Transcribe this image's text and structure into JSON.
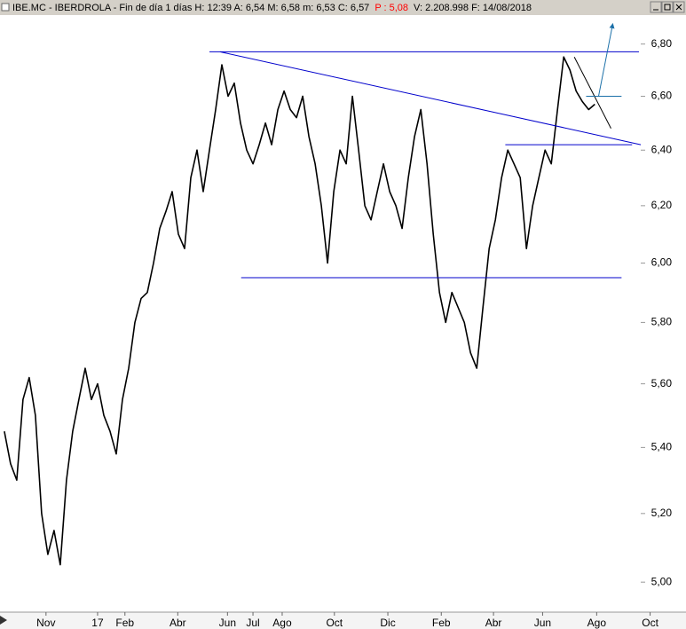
{
  "chart_data": {
    "type": "line",
    "title": "IBE.MC - IBERDROLA - Fin de día 1 días H: 12:39 A: 6,54 M: 6,58 m: 6,53 C: 6,57",
    "title_highlight": "P : 5,08",
    "title_rest": "V: 2.208.998 F: 14/08/2018",
    "highlight_color": "#ff0000",
    "color": "#000000",
    "values": [
      5.45,
      5.35,
      5.3,
      5.55,
      5.62,
      5.5,
      5.2,
      5.08,
      5.15,
      5.05,
      5.3,
      5.45,
      5.55,
      5.65,
      5.55,
      5.6,
      5.5,
      5.45,
      5.38,
      5.55,
      5.65,
      5.8,
      5.88,
      5.9,
      6.0,
      6.12,
      6.18,
      6.25,
      6.1,
      6.05,
      6.3,
      6.4,
      6.25,
      6.4,
      6.55,
      6.72,
      6.6,
      6.65,
      6.5,
      6.4,
      6.35,
      6.42,
      6.5,
      6.42,
      6.55,
      6.62,
      6.55,
      6.52,
      6.6,
      6.45,
      6.35,
      6.2,
      6.0,
      6.25,
      6.4,
      6.35,
      6.6,
      6.4,
      6.2,
      6.15,
      6.25,
      6.35,
      6.25,
      6.2,
      6.12,
      6.3,
      6.45,
      6.55,
      6.35,
      6.1,
      5.9,
      5.8,
      5.9,
      5.85,
      5.8,
      5.7,
      5.65,
      5.85,
      6.05,
      6.15,
      6.3,
      6.4,
      6.35,
      6.3,
      6.05,
      6.2,
      6.3,
      6.4,
      6.35,
      6.55,
      6.75,
      6.7,
      6.62,
      6.58,
      6.55,
      6.57
    ],
    "xlim": [
      -0.7,
      107.1
    ],
    "xticks": [
      {
        "value": 6.7,
        "label": "Nov"
      },
      {
        "value": 15,
        "label": "17"
      },
      {
        "value": 19.4,
        "label": "Feb"
      },
      {
        "value": 27.9,
        "label": "Abr"
      },
      {
        "value": 35.9,
        "label": "Jun"
      },
      {
        "value": 40,
        "label": "Jul"
      },
      {
        "value": 44.7,
        "label": "Ago"
      },
      {
        "value": 53.1,
        "label": "Oct"
      },
      {
        "value": 61.7,
        "label": "Dic"
      },
      {
        "value": 70.3,
        "label": "Feb"
      },
      {
        "value": 78.7,
        "label": "Abr"
      },
      {
        "value": 86.6,
        "label": "Jun"
      },
      {
        "value": 95.3,
        "label": "Ago"
      },
      {
        "value": 103.9,
        "label": "Oct"
      }
    ],
    "ylim": [
      4.92,
      6.91
    ],
    "log_scale": true,
    "yticks": [
      {
        "value": 5.0,
        "label": "5,00"
      },
      {
        "value": 5.2,
        "label": "5,20"
      },
      {
        "value": 5.4,
        "label": "5,40"
      },
      {
        "value": 5.6,
        "label": "5,60"
      },
      {
        "value": 5.8,
        "label": "5,80"
      },
      {
        "value": 6.0,
        "label": "6,00"
      },
      {
        "value": 6.2,
        "label": "6,20"
      },
      {
        "value": 6.4,
        "label": "6,40"
      },
      {
        "value": 6.6,
        "label": "6,60"
      },
      {
        "value": 6.8,
        "label": "6,80"
      }
    ],
    "lines": [
      {
        "x": [
          33,
          102.1
        ],
        "y": [
          6.77,
          6.77
        ],
        "color": "#0000cc"
      },
      {
        "x": [
          34.7,
          102.4
        ],
        "y": [
          6.77,
          6.42
        ],
        "color": "#0000cc"
      },
      {
        "x": [
          80.6,
          101
        ],
        "y": [
          6.42,
          6.42
        ],
        "color": "#0000cc"
      },
      {
        "x": [
          38.1,
          99.3
        ],
        "y": [
          5.95,
          5.95
        ],
        "color": "#0000cc"
      },
      {
        "x": [
          91.7,
          97.6
        ],
        "y": [
          6.75,
          6.48
        ],
        "color": "#000000"
      },
      {
        "x": [
          93.6,
          99.3
        ],
        "y": [
          6.6,
          6.6
        ],
        "color": "#1a6fa8"
      },
      {
        "x": [
          95.6,
          97.9
        ],
        "y": [
          6.6,
          6.88
        ],
        "color": "#1a6fa8",
        "arrow": true
      }
    ]
  }
}
